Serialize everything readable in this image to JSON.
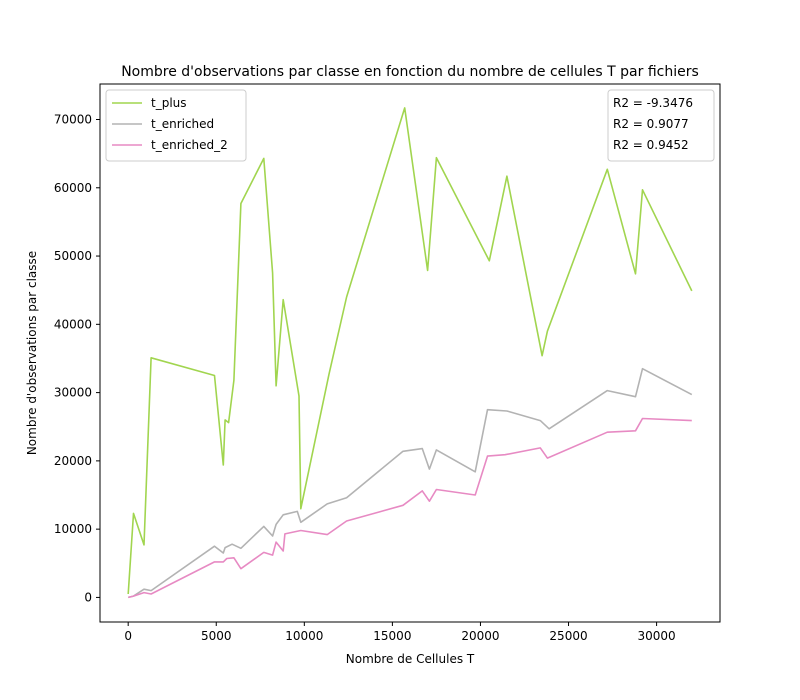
{
  "chart_data": {
    "type": "line",
    "title": "Nombre d'observations par classe en fonction du nombre de cellules T par fichiers",
    "xlabel": "Nombre de Cellules T",
    "ylabel": "Nombre d'observations par classe",
    "xlim": [
      -1600,
      33600
    ],
    "ylim": [
      -3600,
      75200
    ],
    "xticks": [
      0,
      5000,
      10000,
      15000,
      20000,
      25000,
      30000
    ],
    "yticks": [
      0,
      10000,
      20000,
      30000,
      40000,
      50000,
      60000,
      70000
    ],
    "grid": false,
    "legend_position": "upper left",
    "annotation_position": "upper right",
    "annotations": [
      "R2 = -9.3476",
      "R2 = 0.9077",
      "R2 = 0.9452"
    ],
    "series": [
      {
        "name": "t_plus",
        "color": "#a1d54f",
        "x": [
          0,
          300,
          900,
          1300,
          4900,
          5400,
          5500,
          5700,
          6000,
          6400,
          7700,
          8200,
          8400,
          8800,
          9700,
          9800,
          11400,
          12400,
          15700,
          17000,
          17500,
          20500,
          21500,
          23500,
          23800,
          27200,
          28800,
          29200,
          32000
        ],
        "values": [
          500,
          12300,
          7700,
          35100,
          32500,
          19400,
          26000,
          25600,
          31800,
          57700,
          64300,
          47500,
          31000,
          43600,
          29500,
          13000,
          32700,
          44000,
          71700,
          47900,
          64400,
          49300,
          61700,
          35400,
          39000,
          62700,
          47400,
          59700,
          44900
        ]
      },
      {
        "name": "t_enriched",
        "color": "#b3b3b3",
        "x": [
          0,
          300,
          900,
          1300,
          4900,
          5400,
          5500,
          5900,
          6400,
          7700,
          8200,
          8400,
          8800,
          9600,
          9800,
          11300,
          12400,
          15600,
          16700,
          17100,
          17500,
          19700,
          20400,
          21500,
          23400,
          23900,
          27200,
          28800,
          29200,
          32000
        ],
        "values": [
          0,
          200,
          1200,
          1000,
          7500,
          6500,
          7300,
          7800,
          7200,
          10400,
          9000,
          10700,
          12100,
          12600,
          11000,
          13700,
          14600,
          21400,
          21800,
          18800,
          21600,
          18400,
          27500,
          27300,
          25900,
          24700,
          30300,
          29400,
          33500,
          29700
        ]
      },
      {
        "name": "t_enriched_2",
        "color": "#e78ac3",
        "x": [
          0,
          300,
          900,
          1300,
          4900,
          5400,
          5600,
          6000,
          6400,
          7700,
          8200,
          8400,
          8800,
          8900,
          9800,
          11300,
          12400,
          15600,
          16700,
          17100,
          17500,
          19700,
          20400,
          21400,
          23400,
          23800,
          27200,
          28800,
          29200,
          32000
        ],
        "values": [
          0,
          200,
          700,
          500,
          5200,
          5200,
          5700,
          5800,
          4200,
          6600,
          6200,
          8100,
          6800,
          9300,
          9800,
          9200,
          11200,
          13500,
          15600,
          14100,
          15800,
          15000,
          20700,
          20900,
          21900,
          20400,
          24200,
          24400,
          26200,
          25900
        ]
      }
    ]
  }
}
